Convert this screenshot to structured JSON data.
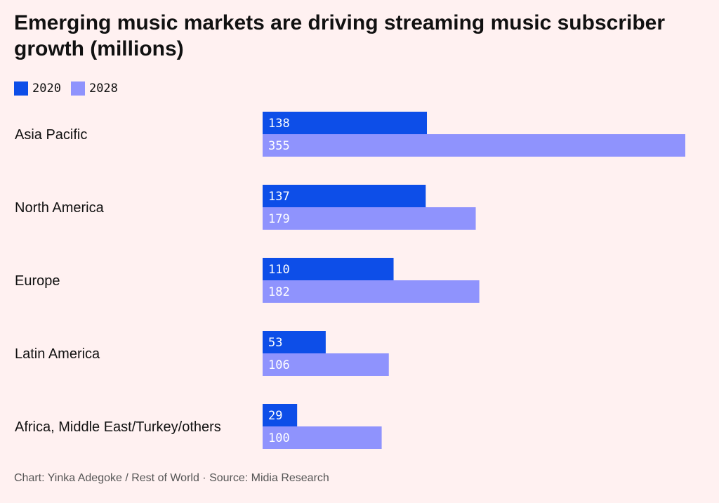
{
  "title": "Emerging music markets are driving streaming music subscriber growth (millions)",
  "footer": "Chart: Yinka Adegoke / Rest of World · Source: Midia Research",
  "colors": {
    "background": "#fff1f1",
    "series_2020": "#0d4ee8",
    "series_2028": "#8f93fd"
  },
  "chart_data": {
    "type": "bar",
    "orientation": "horizontal",
    "title": "Emerging music markets are driving streaming music subscriber growth (millions)",
    "categories": [
      "Asia Pacific",
      "North America",
      "Europe",
      "Latin America",
      "Africa, Middle East/Turkey/others"
    ],
    "series": [
      {
        "name": "2020",
        "color": "#0d4ee8",
        "values": [
          138,
          137,
          110,
          53,
          29
        ]
      },
      {
        "name": "2028",
        "color": "#8f93fd",
        "values": [
          355,
          179,
          182,
          106,
          100
        ]
      }
    ],
    "xlim": [
      0,
      355
    ],
    "legend_position": "top-left",
    "grid": false,
    "data_labels": true
  }
}
